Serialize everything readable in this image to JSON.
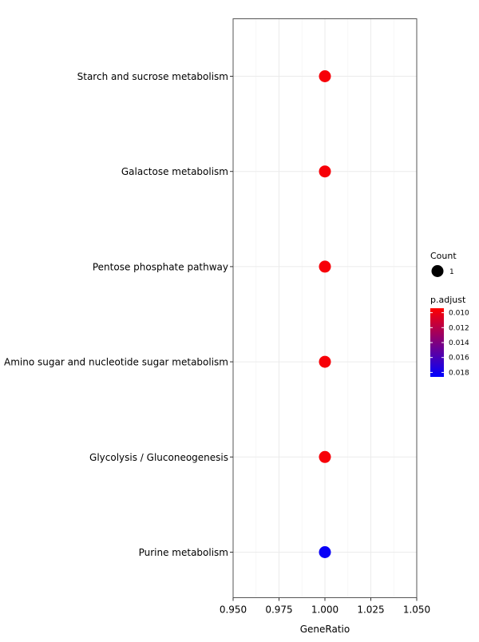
{
  "chart_data": {
    "type": "scatter",
    "xlabel": "GeneRatio",
    "ylabel": "",
    "xlim": [
      0.95,
      1.05
    ],
    "xticks": [
      "0.950",
      "0.975",
      "1.000",
      "1.025",
      "1.050"
    ],
    "xtick_values": [
      0.95,
      0.975,
      1.0,
      1.025,
      1.05
    ],
    "grid": true,
    "legend_position": "right",
    "categories": [
      "Starch and sucrose metabolism",
      "Galactose metabolism",
      "Pentose phosphate pathway",
      "Amino sugar and nucleotide sugar metabolism",
      "Glycolysis / Gluconeogenesis",
      "Purine metabolism"
    ],
    "points": [
      {
        "category": "Starch and sucrose metabolism",
        "x": 1.0,
        "count": 1,
        "p_adjust": 0.0097
      },
      {
        "category": "Galactose metabolism",
        "x": 1.0,
        "count": 1,
        "p_adjust": 0.0097
      },
      {
        "category": "Pentose phosphate pathway",
        "x": 1.0,
        "count": 1,
        "p_adjust": 0.0097
      },
      {
        "category": "Amino sugar and nucleotide sugar metabolism",
        "x": 1.0,
        "count": 1,
        "p_adjust": 0.0097
      },
      {
        "category": "Glycolysis / Gluconeogenesis",
        "x": 1.0,
        "count": 1,
        "p_adjust": 0.0097
      },
      {
        "category": "Purine metabolism",
        "x": 1.0,
        "count": 1,
        "p_adjust": 0.0183
      }
    ],
    "legend_count": {
      "title": "Count",
      "entries": [
        {
          "label": "1",
          "value": 1
        }
      ]
    },
    "legend_color": {
      "title": "p.adjust",
      "ticks": [
        "0.010",
        "0.012",
        "0.014",
        "0.016",
        "0.018"
      ],
      "tick_values": [
        0.01,
        0.012,
        0.014,
        0.016,
        0.018
      ],
      "range": [
        0.0094,
        0.0186
      ],
      "color_low": "#ff0000",
      "color_high": "#0000ff"
    }
  }
}
